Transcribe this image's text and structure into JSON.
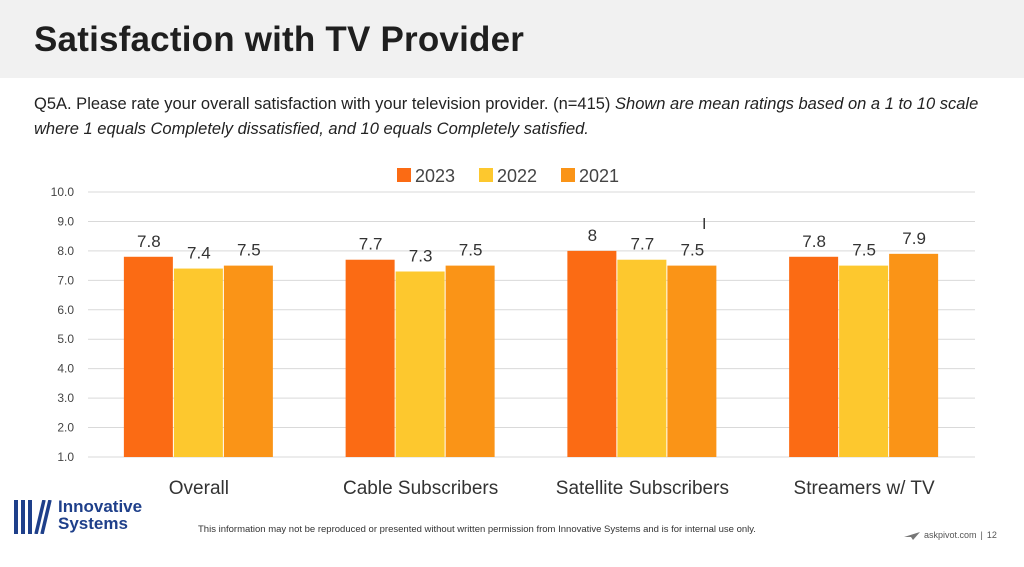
{
  "header": {
    "title": "Satisfaction with TV Provider",
    "question": "Q5A. Please rate your overall satisfaction with your television provider.  (n=415)",
    "note": "Shown are mean ratings based on a 1 to 10 scale where 1 equals Completely dissatisfied, and 10 equals Completely satisfied."
  },
  "chart_data": {
    "type": "bar",
    "categories": [
      "Overall",
      "Cable Subscribers",
      "Satellite Subscribers",
      "Streamers w/ TV"
    ],
    "series": [
      {
        "name": "2023",
        "values": [
          7.8,
          7.7,
          8,
          7.8
        ],
        "labels": [
          "7.8",
          "7.7",
          "8",
          "7.8"
        ],
        "color": "#fb6b14"
      },
      {
        "name": "2022",
        "values": [
          7.4,
          7.3,
          7.7,
          7.5
        ],
        "labels": [
          "7.4",
          "7.3",
          "7.7",
          "7.5"
        ],
        "color": "#fdc82e"
      },
      {
        "name": "2021",
        "values": [
          7.5,
          7.5,
          7.5,
          7.9
        ],
        "labels": [
          "7.5",
          "7.5",
          "7.5",
          "7.9"
        ],
        "color": "#fa9417"
      }
    ],
    "yticks": [
      "1.0",
      "2.0",
      "3.0",
      "4.0",
      "5.0",
      "6.0",
      "7.0",
      "8.0",
      "9.0",
      "10.0"
    ],
    "ylim": [
      1,
      10
    ],
    "grid": true,
    "legend": "top-center"
  },
  "footer": {
    "brand_line1": "Innovative",
    "brand_line2": "Systems",
    "disclaimer": "This information may not be reproduced or presented without written permission from Innovative Systems and is for internal use only.",
    "source": "askpivot.com",
    "separator": "|",
    "page": "12"
  },
  "icons": {
    "logo": "innovative-systems-logo-icon",
    "source": "paper-plane-icon",
    "cursor": "text-cursor-icon"
  }
}
